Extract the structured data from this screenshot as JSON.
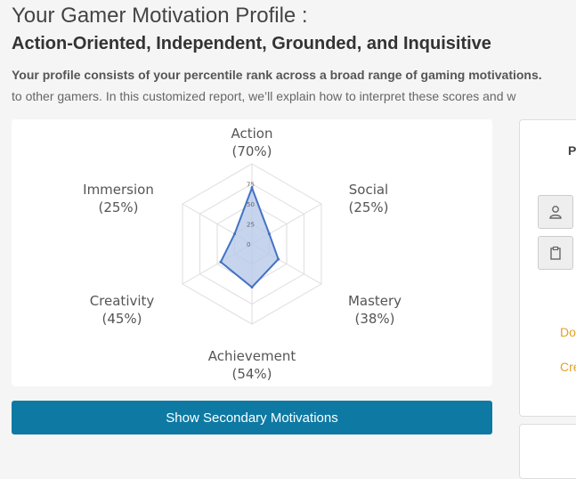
{
  "header": {
    "title": "Your Gamer Motivation Profile :",
    "subtitle": "Action-Oriented, Independent, Grounded, and Inquisitive",
    "intro_bold": "Your profile consists of your percentile rank across a broad range of gaming motivations.",
    "intro_rest": "to other gamers. In this customized report, we’ll explain how to interpret these scores and w"
  },
  "chart_data": {
    "type": "radar",
    "categories": [
      "Action",
      "Social",
      "Mastery",
      "Achievement",
      "Creativity",
      "Immersion"
    ],
    "values": [
      70,
      25,
      38,
      54,
      45,
      25
    ],
    "value_labels": [
      "(70%)",
      "(25%)",
      "(38%)",
      "(54%)",
      "(45%)",
      "(25%)"
    ],
    "ticks": [
      "0",
      "25",
      "50",
      "75"
    ],
    "rlim": [
      0,
      100
    ],
    "colors": {
      "fill": "#b8c9ea",
      "stroke": "#4472c4",
      "grid": "#dddddd"
    }
  },
  "buttons": {
    "secondary": "Show Secondary Motivations"
  },
  "side": {
    "heading": "P",
    "icons": [
      "user-icon",
      "clipboard-icon"
    ],
    "link1": "Do",
    "link2": "Crea"
  }
}
